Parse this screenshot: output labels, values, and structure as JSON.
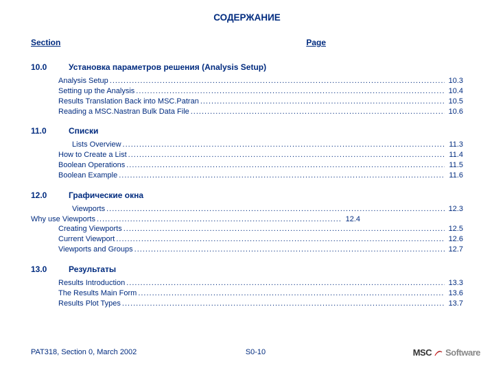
{
  "title": "СОДЕРЖАНИЕ",
  "header": {
    "section_label": "Section",
    "page_label": "Page"
  },
  "colors": {
    "text": "#002b7f",
    "background": "#ffffff",
    "logo_main": "#333333",
    "logo_secondary": "#888888"
  },
  "typography": {
    "title_fontsize_pt": 13.5,
    "heading_fontsize_pt": 12,
    "entry_fontsize_pt": 11,
    "footer_fontsize_pt": 11
  },
  "sections": [
    {
      "num": "10.0",
      "name": "Установка параметров решения (Analysis Setup)",
      "entries": [
        {
          "label": "Analysis Setup",
          "page": "10.3",
          "indent": 40
        },
        {
          "label": "Setting up the Analysis",
          "page": "10.4",
          "indent": 40
        },
        {
          "label": "Results Translation Back into MSC.Patran",
          "page": "10.5",
          "indent": 40
        },
        {
          "label": "Reading a MSC.Nastran Bulk Data File",
          "page": "10.6",
          "indent": 40
        }
      ]
    },
    {
      "num": "11.0",
      "name": "Списки",
      "entries": [
        {
          "label": "Lists Overview",
          "page": "11.3",
          "indent": 60
        },
        {
          "label": "How to Create a List",
          "page": "11.4",
          "indent": 40
        },
        {
          "label": "Boolean Operations",
          "page": "11.5",
          "indent": 40
        },
        {
          "label": "Boolean Example",
          "page": "11.6",
          "indent": 40
        }
      ]
    },
    {
      "num": "12.0",
      "name": "Графические окна",
      "entries": [
        {
          "label": "Viewports",
          "page": "12.3",
          "indent": 60
        },
        {
          "label": "Why use Viewports",
          "page": "12.4",
          "indent": 0,
          "short": true
        },
        {
          "label": "Creating Viewports",
          "page": "12.5",
          "indent": 40
        },
        {
          "label": "Current Viewport",
          "page": "12.6",
          "indent": 40
        },
        {
          "label": "Viewports and Groups",
          "page": "12.7",
          "indent": 40
        }
      ]
    },
    {
      "num": "13.0",
      "name": "Результаты",
      "entries": [
        {
          "label": "Results Introduction",
          "page": "13.3",
          "indent": 40
        },
        {
          "label": "The Results Main Form",
          "page": "13.6",
          "indent": 40
        },
        {
          "label": "Results Plot Types",
          "page": "13.7",
          "indent": 40
        }
      ]
    }
  ],
  "footer": {
    "left": "PAT318, Section  0, March 2002",
    "center": "S0-10",
    "logo_main": "MSC",
    "logo_soft": "Software"
  }
}
